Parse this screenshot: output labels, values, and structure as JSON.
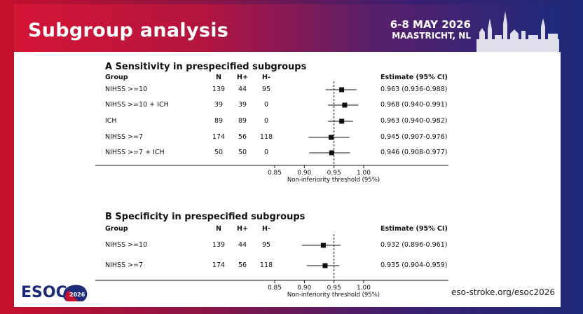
{
  "header": {
    "title": "Subgroup analysis",
    "event_date": "6-8 MAY 2026",
    "event_place": "MAASTRICHT, NL"
  },
  "table_headers": {
    "group": "Group",
    "n": "N",
    "hpos": "H+",
    "hneg": "H-",
    "estimate": "Estimate (95% CI)"
  },
  "axis": {
    "ticks": [
      "0.85",
      "0.90",
      "0.95",
      "1.00"
    ],
    "label": "Non-inferiority threshold (95%)"
  },
  "footer": {
    "logo_text": "ESOC",
    "logo_year": "2026",
    "url": "eso-stroke.org/esoc2026"
  },
  "colors": {
    "brand_red": "#c8102e",
    "brand_blue": "#1f2a7a"
  },
  "chart_data": [
    {
      "type": "forest",
      "title": "A  Sensitivity in prespecified subgroups",
      "xlabel": "Non-inferiority threshold (95%)",
      "x_ticks": [
        0.85,
        0.9,
        0.95,
        1.0
      ],
      "threshold": 0.95,
      "rows": [
        {
          "group": "NIHSS >=10",
          "n": "139",
          "hpos": "44",
          "hneg": "95",
          "estimate": 0.963,
          "lo": 0.936,
          "hi": 0.988,
          "ci_text": "0.963 (0.936-0.988)"
        },
        {
          "group": "NIHSS >=10 + ICH",
          "n": "39",
          "hpos": "39",
          "hneg": "0",
          "estimate": 0.968,
          "lo": 0.94,
          "hi": 0.991,
          "ci_text": "0.968 (0.940-0.991)"
        },
        {
          "group": "ICH",
          "n": "89",
          "hpos": "89",
          "hneg": "0",
          "estimate": 0.963,
          "lo": 0.94,
          "hi": 0.982,
          "ci_text": "0.963 (0.940-0.982)"
        },
        {
          "group": "NIHSS >=7",
          "n": "174",
          "hpos": "56",
          "hneg": "118",
          "estimate": 0.945,
          "lo": 0.907,
          "hi": 0.976,
          "ci_text": "0.945 (0.907-0.976)"
        },
        {
          "group": "NIHSS >=7 + ICH",
          "n": "50",
          "hpos": "50",
          "hneg": "0",
          "estimate": 0.946,
          "lo": 0.908,
          "hi": 0.977,
          "ci_text": "0.946 (0.908-0.977)"
        }
      ]
    },
    {
      "type": "forest",
      "title": "B  Specificity in prespecified subgroups",
      "xlabel": "Non-inferiority threshold (95%)",
      "x_ticks": [
        0.85,
        0.9,
        0.95,
        1.0
      ],
      "threshold": 0.95,
      "rows": [
        {
          "group": "NIHSS >=10",
          "n": "139",
          "hpos": "44",
          "hneg": "95",
          "estimate": 0.932,
          "lo": 0.896,
          "hi": 0.961,
          "ci_text": "0.932 (0.896-0.961)"
        },
        {
          "group": "NIHSS >=7",
          "n": "174",
          "hpos": "56",
          "hneg": "118",
          "estimate": 0.935,
          "lo": 0.904,
          "hi": 0.959,
          "ci_text": "0.935 (0.904-0.959)"
        }
      ]
    }
  ]
}
